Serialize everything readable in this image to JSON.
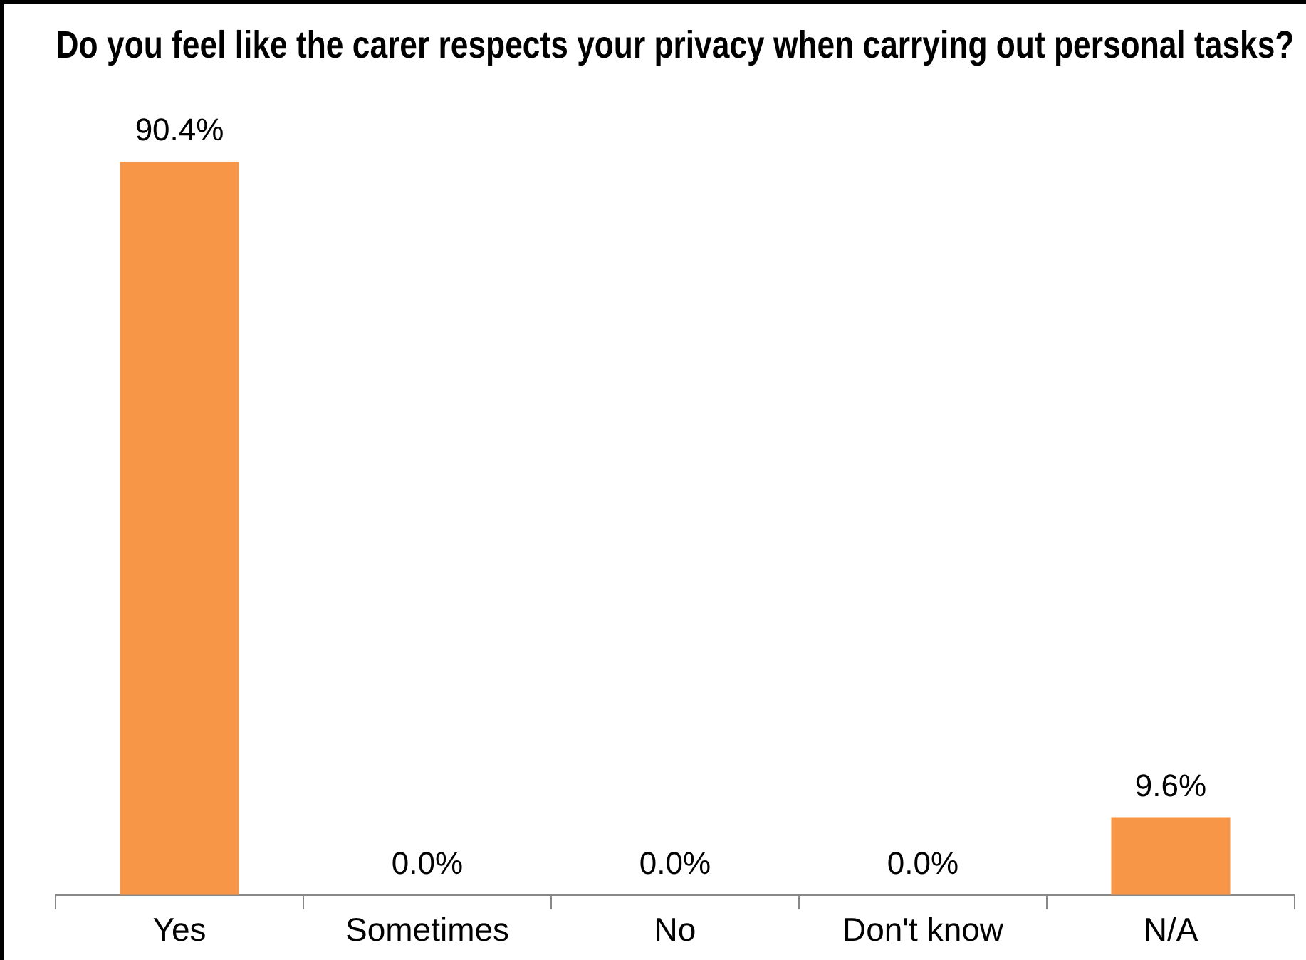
{
  "chart_data": {
    "type": "bar",
    "title": "Do you feel like the carer respects your privacy when carrying out personal tasks?",
    "categories": [
      "Yes",
      "Sometimes",
      "No",
      "Don't know",
      "N/A"
    ],
    "values": [
      90.4,
      0,
      0,
      0,
      9.6
    ],
    "value_labels": [
      "90.4%",
      "0.0%",
      "0.0%",
      "0.0%",
      "9.6%"
    ],
    "color": "#f79646",
    "grid": false,
    "legend": false
  }
}
